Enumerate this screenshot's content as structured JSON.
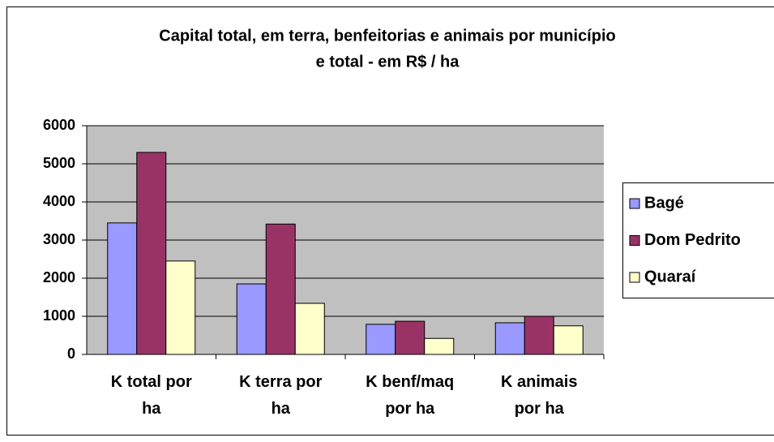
{
  "chart_data": {
    "type": "bar",
    "title": [
      "Capital total, em terra, benfeitorias e animais por município",
      "e total - em R$ / ha"
    ],
    "categories": [
      "K total por ha",
      "K terra por ha",
      "K benf/maq por ha",
      "K animais por ha"
    ],
    "series": [
      {
        "name": "Bagé",
        "color": "#9999FF",
        "values": [
          3450,
          1850,
          790,
          830
        ]
      },
      {
        "name": "Dom Pedrito",
        "color": "#993366",
        "values": [
          5300,
          3420,
          870,
          1000
        ]
      },
      {
        "name": "Quaraí",
        "color": "#FFFFCC",
        "values": [
          2450,
          1340,
          420,
          750
        ]
      }
    ],
    "ylim": [
      0,
      6000
    ],
    "yticks": [
      0,
      1000,
      2000,
      3000,
      4000,
      5000,
      6000
    ],
    "grid": true,
    "legend": "right"
  }
}
